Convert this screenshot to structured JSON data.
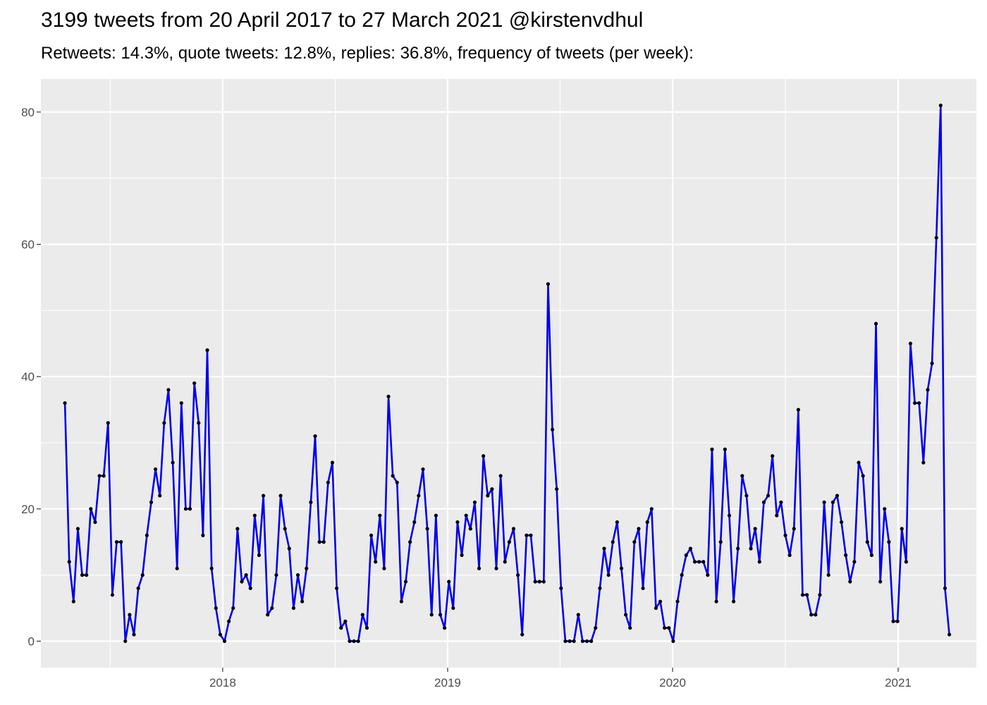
{
  "chart_data": {
    "type": "line",
    "title": "3199 tweets from 20 April 2017 to 27 March 2021 @kirstenvdhul",
    "subtitle": "Retweets: 14.3%, quote tweets: 12.8%, replies: 36.8%, frequency of tweets (per week):",
    "xlabel": "",
    "ylabel": "",
    "x_axis": {
      "type": "date",
      "range": [
        "2017-03-12",
        "2021-05-08"
      ],
      "ticks": [
        {
          "date": "2018-01-01",
          "label": "2018"
        },
        {
          "date": "2019-01-01",
          "label": "2019"
        },
        {
          "date": "2020-01-01",
          "label": "2020"
        },
        {
          "date": "2021-01-01",
          "label": "2021"
        }
      ]
    },
    "y_axis": {
      "range": [
        -4,
        85
      ],
      "ticks": [
        0,
        20,
        40,
        60,
        80
      ],
      "tick_labels": [
        "0",
        "20",
        "40",
        "60",
        "80"
      ]
    },
    "grid": true,
    "line_color": "#0000ee",
    "point_color": "#000000",
    "panel_color": "#ebebeb",
    "series": [
      {
        "start_date": "2017-04-20",
        "interval_days": 7,
        "values": [
          36,
          12,
          6,
          17,
          10,
          10,
          20,
          18,
          25,
          25,
          33,
          7,
          15,
          15,
          0,
          4,
          1,
          8,
          10,
          16,
          21,
          26,
          22,
          33,
          38,
          27,
          11,
          36,
          20,
          20,
          39,
          33,
          16,
          44,
          11,
          5,
          1,
          0,
          3,
          5,
          17,
          9,
          10,
          8,
          19,
          13,
          22,
          4,
          5,
          10,
          22,
          17,
          14,
          5,
          10,
          6,
          11,
          21,
          31,
          15,
          15,
          24,
          27,
          8,
          2,
          3,
          0,
          0,
          0,
          4,
          2,
          16,
          12,
          19,
          11,
          37,
          25,
          24,
          6,
          9,
          15,
          18,
          22,
          26,
          17,
          4,
          19,
          4,
          2,
          9,
          5,
          18,
          13,
          19,
          17,
          21,
          11,
          28,
          22,
          23,
          11,
          25,
          12,
          15,
          17,
          10,
          1,
          16,
          16,
          9,
          9,
          9,
          54,
          32,
          23,
          8,
          0,
          0,
          0,
          4,
          0,
          0,
          0,
          2,
          8,
          14,
          10,
          15,
          18,
          11,
          4,
          2,
          15,
          17,
          8,
          18,
          20,
          5,
          6,
          2,
          2,
          0,
          6,
          10,
          13,
          14,
          12,
          12,
          12,
          10,
          29,
          6,
          15,
          29,
          19,
          6,
          14,
          25,
          22,
          14,
          17,
          12,
          21,
          22,
          28,
          19,
          21,
          16,
          13,
          17,
          35,
          7,
          7,
          4,
          4,
          7,
          21,
          10,
          21,
          22,
          18,
          13,
          9,
          12,
          27,
          25,
          15,
          13,
          48,
          9,
          20,
          15,
          3,
          3,
          17,
          12,
          45,
          36,
          36,
          27,
          38,
          42,
          61,
          81,
          8,
          1
        ]
      }
    ]
  }
}
